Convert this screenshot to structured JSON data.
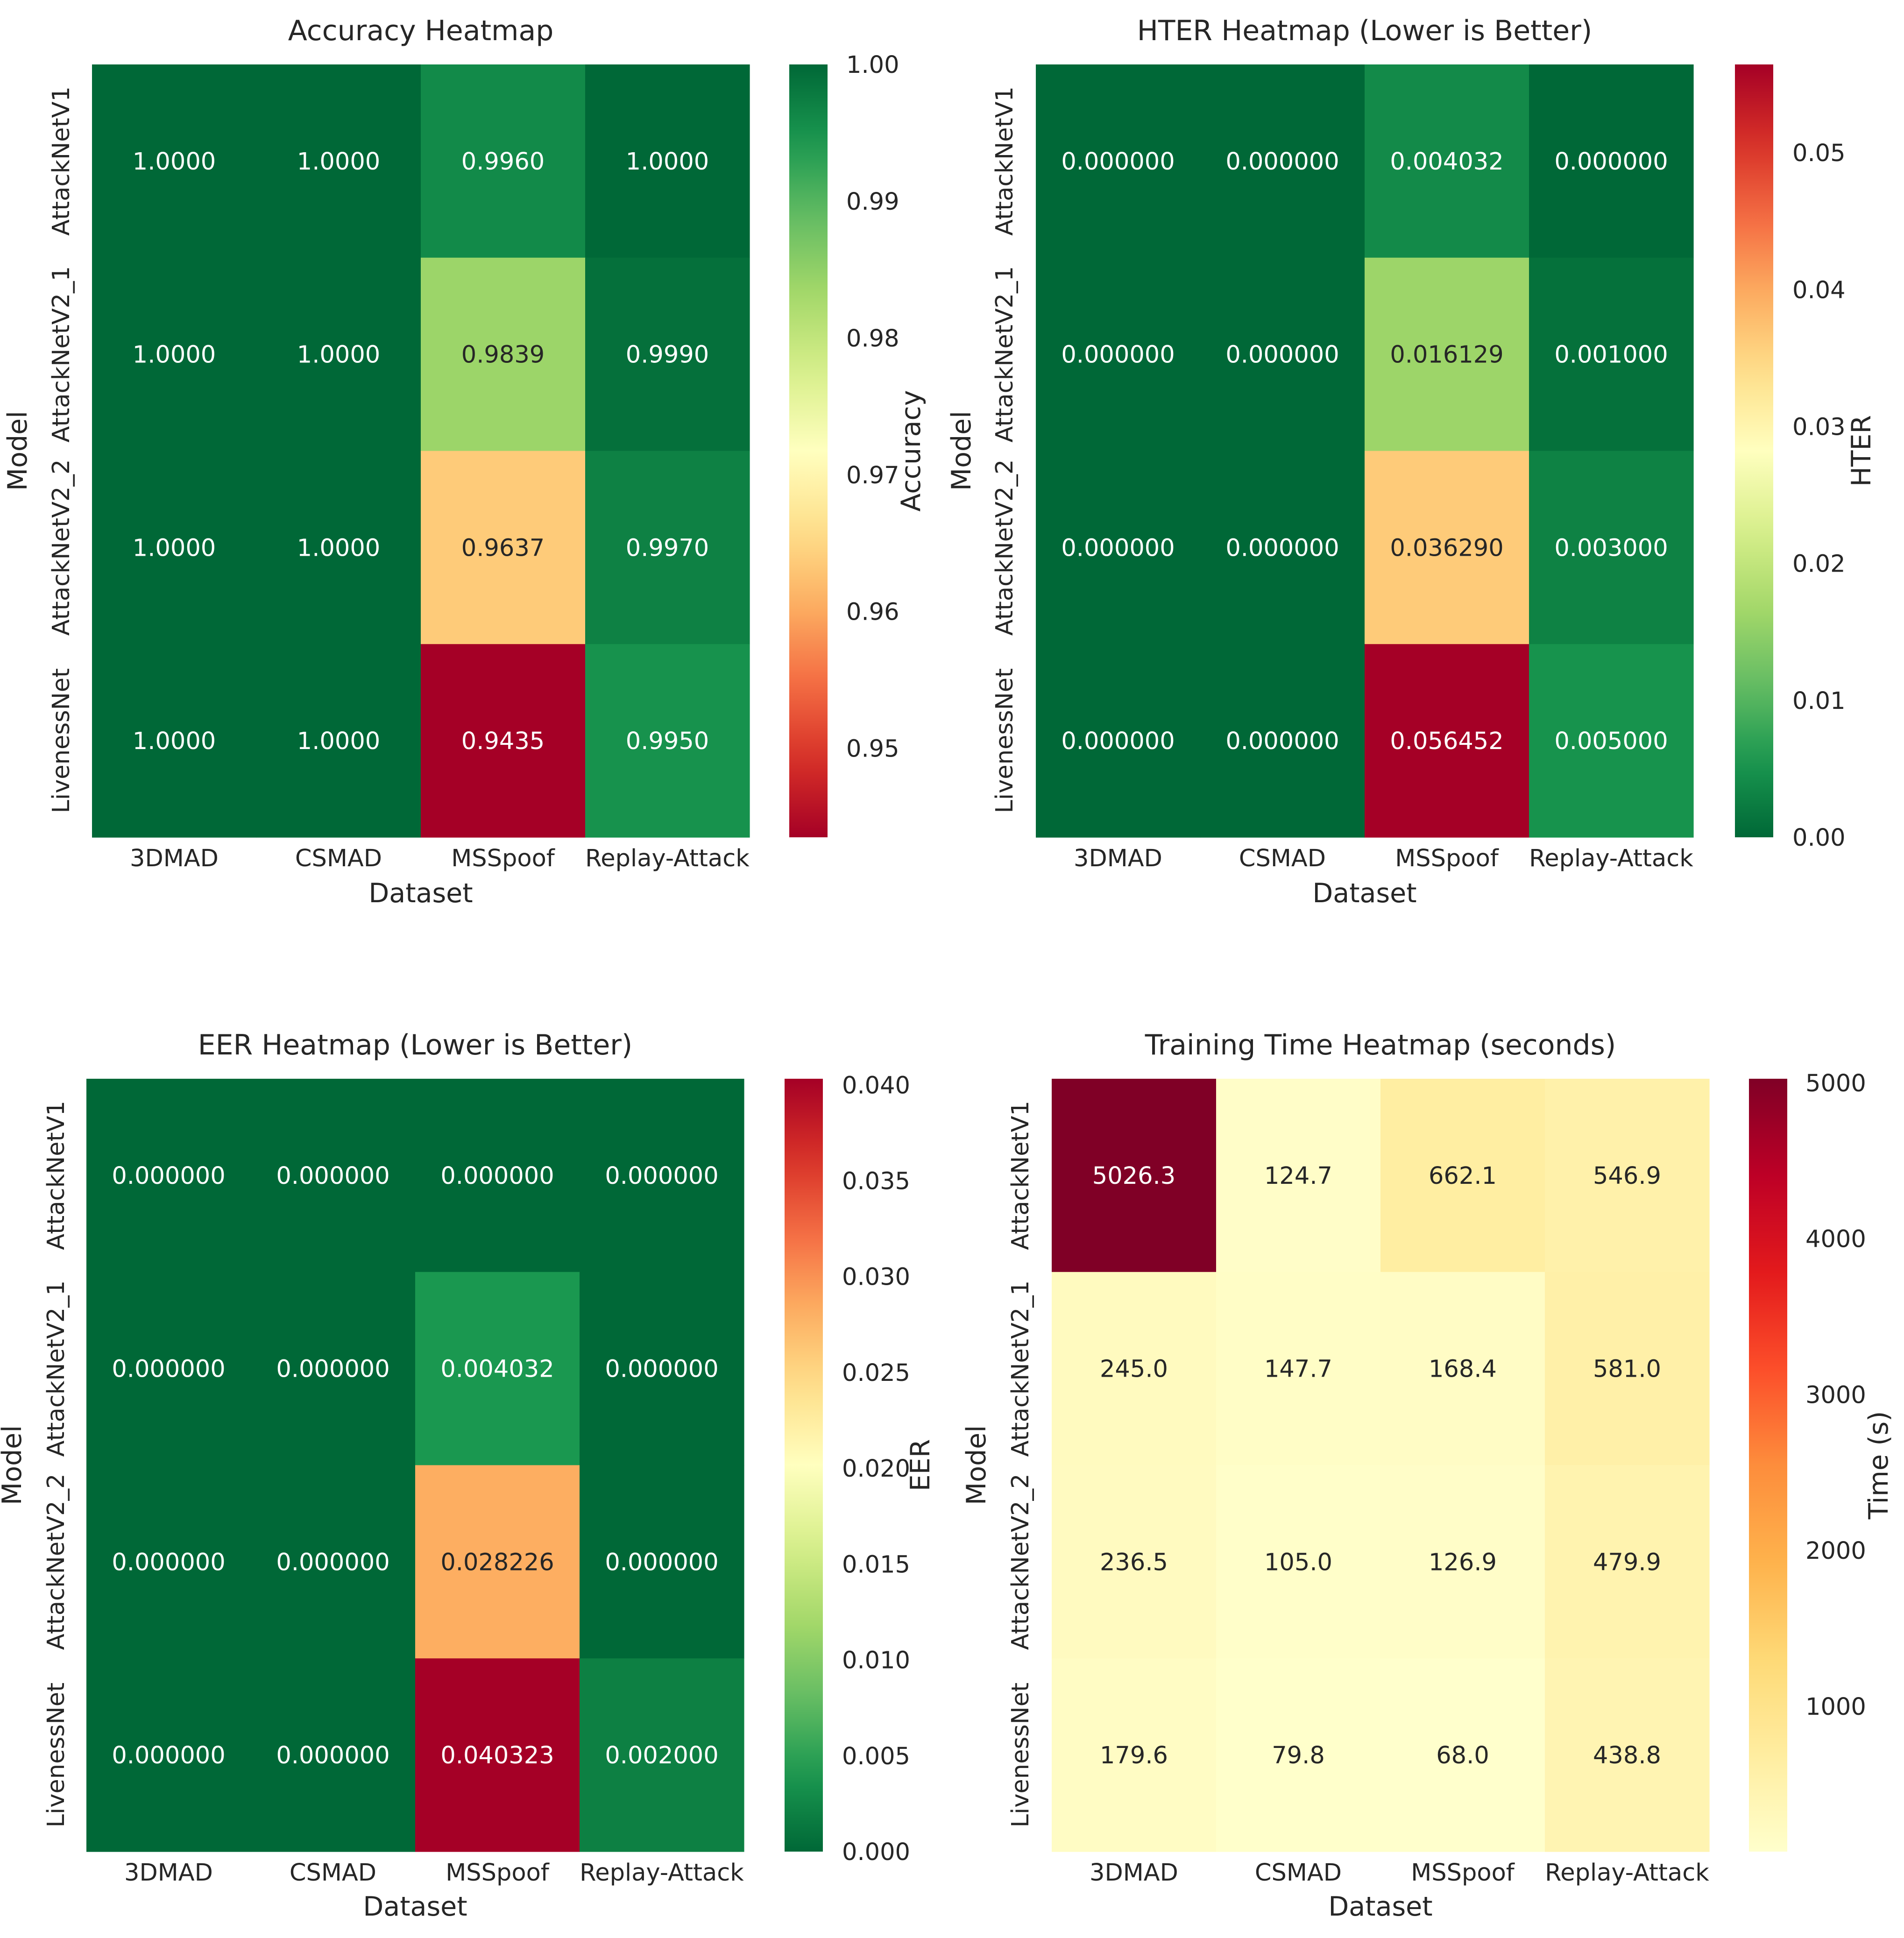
{
  "chart_data": [
    {
      "type": "heatmap",
      "title": "Accuracy Heatmap",
      "xlabel": "Dataset",
      "ylabel": "Model",
      "colorbar_label": "Accuracy",
      "colormap": "RdYlGn",
      "reverse_colormap": false,
      "vmin": 0.9435,
      "vmax": 1.0,
      "colorbar_ticks": [
        0.95,
        0.96,
        0.97,
        0.98,
        0.99,
        1.0
      ],
      "colorbar_tick_labels": [
        "0.95",
        "0.96",
        "0.97",
        "0.98",
        "0.99",
        "1.00"
      ],
      "columns": [
        "3DMAD",
        "CSMAD",
        "MSSpoof",
        "Replay-Attack"
      ],
      "rows": [
        "AttackNetV1",
        "AttackNetV2_1",
        "AttackNetV2_2",
        "LivenessNet"
      ],
      "values": [
        [
          1.0,
          1.0,
          0.996,
          1.0
        ],
        [
          1.0,
          1.0,
          0.9839,
          0.999
        ],
        [
          1.0,
          1.0,
          0.9637,
          0.997
        ],
        [
          1.0,
          1.0,
          0.9435,
          0.995
        ]
      ],
      "cell_labels": [
        [
          "1.0000",
          "1.0000",
          "0.9960",
          "1.0000"
        ],
        [
          "1.0000",
          "1.0000",
          "0.9839",
          "0.9990"
        ],
        [
          "1.0000",
          "1.0000",
          "0.9637",
          "0.9970"
        ],
        [
          "1.0000",
          "1.0000",
          "0.9435",
          "0.9950"
        ]
      ]
    },
    {
      "type": "heatmap",
      "title": "HTER Heatmap (Lower is Better)",
      "xlabel": "Dataset",
      "ylabel": "Model",
      "colorbar_label": "HTER",
      "colormap": "RdYlGn_r",
      "reverse_colormap": true,
      "vmin": 0.0,
      "vmax": 0.056452,
      "colorbar_ticks": [
        0.0,
        0.01,
        0.02,
        0.03,
        0.04,
        0.05
      ],
      "colorbar_tick_labels": [
        "0.00",
        "0.01",
        "0.02",
        "0.03",
        "0.04",
        "0.05"
      ],
      "columns": [
        "3DMAD",
        "CSMAD",
        "MSSpoof",
        "Replay-Attack"
      ],
      "rows": [
        "AttackNetV1",
        "AttackNetV2_1",
        "AttackNetV2_2",
        "LivenessNet"
      ],
      "values": [
        [
          0.0,
          0.0,
          0.004032,
          0.0
        ],
        [
          0.0,
          0.0,
          0.016129,
          0.001
        ],
        [
          0.0,
          0.0,
          0.03629,
          0.003
        ],
        [
          0.0,
          0.0,
          0.056452,
          0.005
        ]
      ],
      "cell_labels": [
        [
          "0.000000",
          "0.000000",
          "0.004032",
          "0.000000"
        ],
        [
          "0.000000",
          "0.000000",
          "0.016129",
          "0.001000"
        ],
        [
          "0.000000",
          "0.000000",
          "0.036290",
          "0.003000"
        ],
        [
          "0.000000",
          "0.000000",
          "0.056452",
          "0.005000"
        ]
      ]
    },
    {
      "type": "heatmap",
      "title": "EER Heatmap (Lower is Better)",
      "xlabel": "Dataset",
      "ylabel": "Model",
      "colorbar_label": "EER",
      "colormap": "RdYlGn_r",
      "reverse_colormap": true,
      "vmin": 0.0,
      "vmax": 0.040323,
      "colorbar_ticks": [
        0.0,
        0.005,
        0.01,
        0.015,
        0.02,
        0.025,
        0.03,
        0.035,
        0.04
      ],
      "colorbar_tick_labels": [
        "0.000",
        "0.005",
        "0.010",
        "0.015",
        "0.020",
        "0.025",
        "0.030",
        "0.035",
        "0.040"
      ],
      "columns": [
        "3DMAD",
        "CSMAD",
        "MSSpoof",
        "Replay-Attack"
      ],
      "rows": [
        "AttackNetV1",
        "AttackNetV2_1",
        "AttackNetV2_2",
        "LivenessNet"
      ],
      "values": [
        [
          0.0,
          0.0,
          0.0,
          0.0
        ],
        [
          0.0,
          0.0,
          0.004032,
          0.0
        ],
        [
          0.0,
          0.0,
          0.028226,
          0.0
        ],
        [
          0.0,
          0.0,
          0.040323,
          0.002
        ]
      ],
      "cell_labels": [
        [
          "0.000000",
          "0.000000",
          "0.000000",
          "0.000000"
        ],
        [
          "0.000000",
          "0.000000",
          "0.004032",
          "0.000000"
        ],
        [
          "0.000000",
          "0.000000",
          "0.028226",
          "0.000000"
        ],
        [
          "0.000000",
          "0.000000",
          "0.040323",
          "0.002000"
        ]
      ]
    },
    {
      "type": "heatmap",
      "title": "Training Time Heatmap (seconds)",
      "xlabel": "Dataset",
      "ylabel": "Model",
      "colorbar_label": "Time (s)",
      "colormap": "YlOrRd",
      "reverse_colormap": false,
      "vmin": 68.0,
      "vmax": 5026.3,
      "colorbar_ticks": [
        1000,
        2000,
        3000,
        4000,
        5000
      ],
      "colorbar_tick_labels": [
        "1000",
        "2000",
        "3000",
        "4000",
        "5000"
      ],
      "columns": [
        "3DMAD",
        "CSMAD",
        "MSSpoof",
        "Replay-Attack"
      ],
      "rows": [
        "AttackNetV1",
        "AttackNetV2_1",
        "AttackNetV2_2",
        "LivenessNet"
      ],
      "values": [
        [
          5026.3,
          124.7,
          662.1,
          546.9
        ],
        [
          245.0,
          147.7,
          168.4,
          581.0
        ],
        [
          236.5,
          105.0,
          126.9,
          479.9
        ],
        [
          179.6,
          79.8,
          68.0,
          438.8
        ]
      ],
      "cell_labels": [
        [
          "5026.3",
          "124.7",
          "662.1",
          "546.9"
        ],
        [
          "245.0",
          "147.7",
          "168.4",
          "581.0"
        ],
        [
          "236.5",
          "105.0",
          "126.9",
          "479.9"
        ],
        [
          "179.6",
          "79.8",
          "68.0",
          "438.8"
        ]
      ]
    }
  ]
}
